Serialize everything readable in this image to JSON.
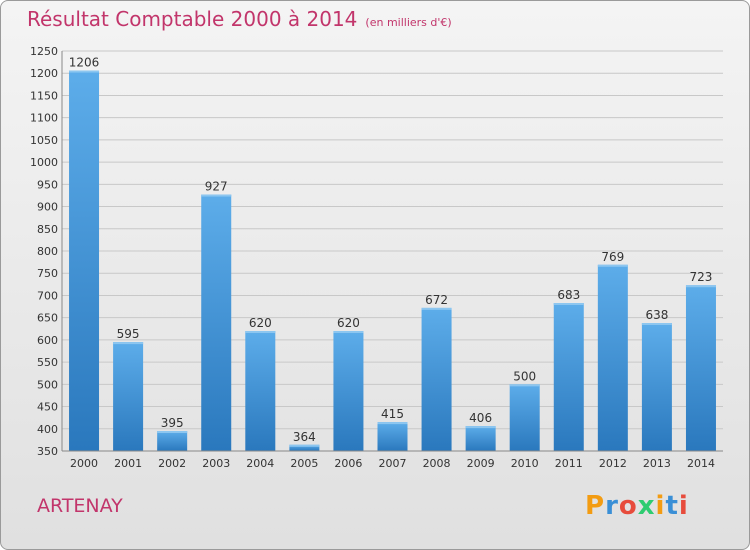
{
  "chart_data": {
    "type": "bar",
    "title": "Résultat Comptable 2000 à 2014",
    "subtitle": "(en milliers d'€)",
    "categories": [
      "2000",
      "2001",
      "2002",
      "2003",
      "2004",
      "2005",
      "2006",
      "2007",
      "2008",
      "2009",
      "2010",
      "2011",
      "2012",
      "2013",
      "2014"
    ],
    "values": [
      1206,
      595,
      395,
      927,
      620,
      364,
      620,
      415,
      672,
      406,
      500,
      683,
      769,
      638,
      723
    ],
    "ylim": [
      350,
      1250
    ],
    "yticks": [
      350,
      400,
      450,
      500,
      550,
      600,
      650,
      700,
      750,
      800,
      850,
      900,
      950,
      1000,
      1050,
      1100,
      1150,
      1200,
      1250
    ],
    "grid": true,
    "bar_color": "#3a8fd6"
  },
  "footer": {
    "town": "ARTENAY",
    "logo": [
      "P",
      "r",
      "o",
      "x",
      "i",
      "t",
      "i"
    ],
    "logo_colors": [
      "#f39c12",
      "#3a8fd6",
      "#e74c3c",
      "#2ecc71",
      "#f39c12",
      "#3a8fd6",
      "#e74c3c"
    ]
  }
}
